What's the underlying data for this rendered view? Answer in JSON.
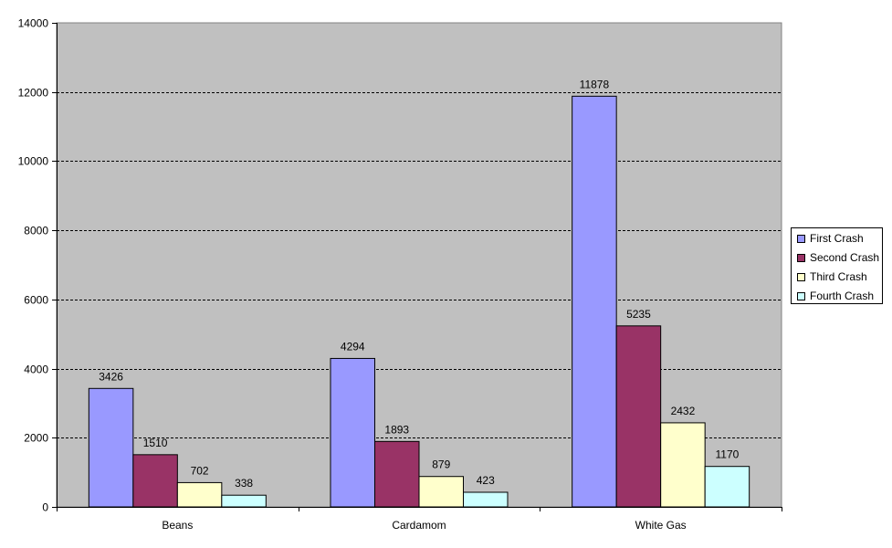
{
  "chart_data": {
    "type": "bar",
    "title": "",
    "xlabel": "",
    "ylabel": "",
    "ylim": [
      0,
      14000
    ],
    "yticks": [
      0,
      2000,
      4000,
      6000,
      8000,
      10000,
      12000,
      14000
    ],
    "grid": "horizontal dashed",
    "legend_position": "right",
    "categories": [
      "Beans",
      "Cardamom",
      "White Gas"
    ],
    "series": [
      {
        "name": "First Crash",
        "color": "#9999ff",
        "values": [
          3426,
          4294,
          11878
        ]
      },
      {
        "name": "Second Crash",
        "color": "#993366",
        "values": [
          1510,
          1893,
          5235
        ]
      },
      {
        "name": "Third Crash",
        "color": "#ffffcc",
        "values": [
          702,
          879,
          2432
        ]
      },
      {
        "name": "Fourth Crash",
        "color": "#ccffff",
        "values": [
          338,
          423,
          1170
        ]
      }
    ],
    "plot_background": "#c0c0c0"
  }
}
